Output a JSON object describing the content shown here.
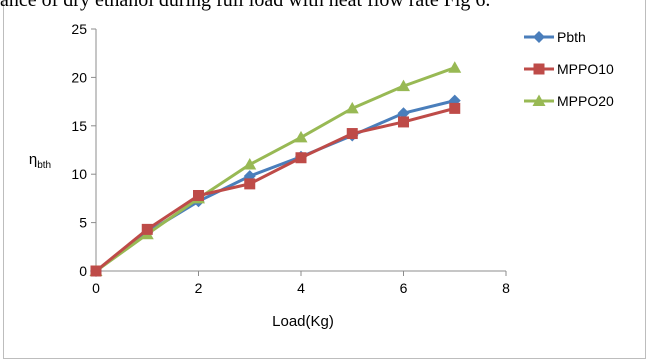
{
  "page": {
    "top_text": "ance of dry ethanol during full load with heat flow rate Fig 6. "
  },
  "chart_data": {
    "type": "line",
    "title": "",
    "xlabel": "Load(Kg)",
    "ylabel": "η",
    "ylabel_sub": "bth",
    "xlim": [
      0,
      8
    ],
    "ylim": [
      0,
      25
    ],
    "xticks": [
      0,
      2,
      4,
      6,
      8
    ],
    "yticks": [
      0,
      5,
      10,
      15,
      20,
      25
    ],
    "grid": false,
    "legend_position": "right",
    "x": [
      0,
      1,
      2,
      3,
      4,
      5,
      6,
      7
    ],
    "series": [
      {
        "name": "Pbth",
        "color": "#4a7ebb",
        "marker": "diamond",
        "values": [
          0,
          4.0,
          7.2,
          9.8,
          11.8,
          14.0,
          16.3,
          17.6
        ]
      },
      {
        "name": "MPPO10",
        "color": "#be4b48",
        "marker": "square",
        "values": [
          0,
          4.3,
          7.8,
          9.0,
          11.7,
          14.2,
          15.4,
          16.8
        ]
      },
      {
        "name": "MPPO20",
        "color": "#98b954",
        "marker": "triangle",
        "values": [
          0,
          3.8,
          7.5,
          11.0,
          13.8,
          16.8,
          19.1,
          21.0
        ]
      }
    ]
  }
}
